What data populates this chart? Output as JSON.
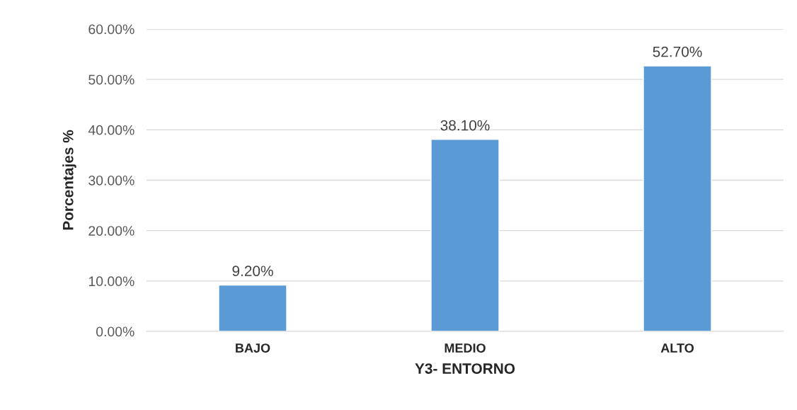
{
  "chart_data": {
    "type": "bar",
    "xlabel": "Y3- ENTORNO",
    "ylabel": "Porcentajes %",
    "categories": [
      "BAJO",
      "MEDIO",
      "ALTO"
    ],
    "values": [
      9.2,
      38.1,
      52.7
    ],
    "color": "#5b9bd5",
    "value_labels": [
      "9.20%",
      "38.10%",
      "52.70%"
    ],
    "ylim": [
      0,
      60
    ],
    "yticks": [
      {
        "value": 0,
        "label": "0.00%"
      },
      {
        "value": 10,
        "label": "10.00%"
      },
      {
        "value": 20,
        "label": "20.00%"
      },
      {
        "value": 30,
        "label": "30.00%"
      },
      {
        "value": 40,
        "label": "40.00%"
      },
      {
        "value": 50,
        "label": "50.00%"
      },
      {
        "value": 60,
        "label": "60.00%"
      }
    ],
    "grid": "y"
  }
}
